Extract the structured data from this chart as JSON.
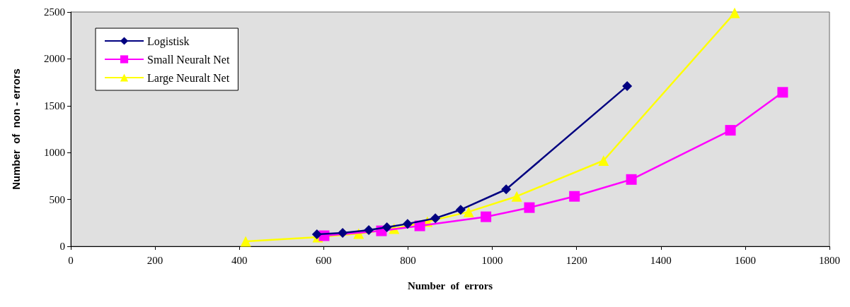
{
  "chart_data": {
    "type": "line",
    "xlabel": "Number  of  errors",
    "ylabel": "Number  of  non - errors",
    "xlim": [
      0,
      1800
    ],
    "xticks": [
      0,
      200,
      400,
      600,
      800,
      1000,
      1200,
      1400,
      1600,
      1800
    ],
    "ylim": [
      0,
      2500
    ],
    "yticks": [
      0,
      500,
      1000,
      1500,
      2000,
      2500
    ],
    "grid": false,
    "legend": "top left",
    "series": [
      {
        "name": "Logistisk",
        "color": "#000080",
        "marker": "diamond",
        "x": [
          584,
          645,
          707,
          750,
          799,
          865,
          925,
          1033,
          1320
        ],
        "values": [
          128,
          143,
          173,
          203,
          240,
          300,
          390,
          608,
          1710
        ]
      },
      {
        "name": "Small Neuralt Net",
        "color": "#ff00ff",
        "marker": "square",
        "x": [
          601,
          737,
          828,
          985,
          1088,
          1195,
          1330,
          1565,
          1689
        ],
        "values": [
          113,
          165,
          218,
          315,
          413,
          533,
          713,
          1238,
          1643
        ]
      },
      {
        "name": "Large Neuralt Net",
        "color": "#ffff00",
        "marker": "triangle",
        "x": [
          415,
          586,
          683,
          767,
          846,
          944,
          1058,
          1264,
          1575
        ],
        "values": [
          53,
          98,
          135,
          188,
          263,
          368,
          533,
          915,
          2490
        ]
      }
    ]
  }
}
